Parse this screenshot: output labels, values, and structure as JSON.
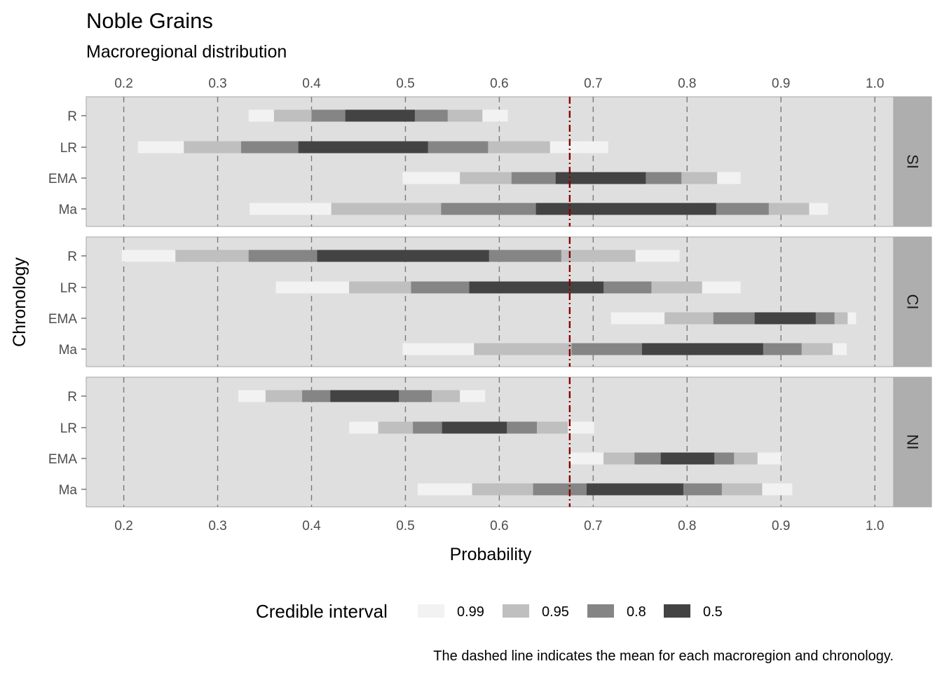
{
  "chart_data": {
    "type": "interval",
    "title": "Noble Grains",
    "subtitle": "Macroregional distribution",
    "xlabel": "Probability",
    "ylabel": "Chronology",
    "caption": "The dashed line indicates the mean for each macroregion and chronology.",
    "xlim": [
      0.16,
      1.02
    ],
    "x_ticks": [
      "0.2",
      "0.3",
      "0.4",
      "0.5",
      "0.6",
      "0.7",
      "0.8",
      "0.9",
      "1.0"
    ],
    "x_tick_values": [
      0.2,
      0.3,
      0.4,
      0.5,
      0.6,
      0.7,
      0.8,
      0.9,
      1.0
    ],
    "grid": true,
    "mean_line": 0.675,
    "categories": [
      "R",
      "LR",
      "EMA",
      "Ma"
    ],
    "legend": {
      "title": "Credible interval",
      "position": "bottom",
      "levels": [
        "0.99",
        "0.95",
        "0.8",
        "0.5"
      ],
      "colors": [
        "#f2f2f2",
        "#bfbfbf",
        "#858585",
        "#434343"
      ]
    },
    "colors": {
      "panel_bg": "#dfdfdf",
      "strip_bg": "#aeaeae",
      "mean_line": "#8b0000",
      "grid_line": "#7a7a7a"
    },
    "panels": [
      {
        "strip": "SI",
        "rows": [
          {
            "label": "R",
            "i99": [
              0.333,
              0.609
            ],
            "i95": [
              0.36,
              0.582
            ],
            "i80": [
              0.4,
              0.545
            ],
            "i50": [
              0.436,
              0.51
            ]
          },
          {
            "label": "LR",
            "i99": [
              0.215,
              0.716
            ],
            "i95": [
              0.264,
              0.654
            ],
            "i80": [
              0.325,
              0.588
            ],
            "i50": [
              0.386,
              0.524
            ]
          },
          {
            "label": "EMA",
            "i99": [
              0.497,
              0.857
            ],
            "i95": [
              0.558,
              0.832
            ],
            "i80": [
              0.613,
              0.794
            ],
            "i50": [
              0.66,
              0.756
            ]
          },
          {
            "label": "Ma",
            "i99": [
              0.334,
              0.95
            ],
            "i95": [
              0.421,
              0.93
            ],
            "i80": [
              0.538,
              0.887
            ],
            "i50": [
              0.639,
              0.831
            ]
          }
        ]
      },
      {
        "strip": "CI",
        "rows": [
          {
            "label": "R",
            "i99": [
              0.198,
              0.792
            ],
            "i95": [
              0.255,
              0.745
            ],
            "i80": [
              0.333,
              0.666
            ],
            "i50": [
              0.406,
              0.589
            ]
          },
          {
            "label": "LR",
            "i99": [
              0.362,
              0.857
            ],
            "i95": [
              0.44,
              0.816
            ],
            "i80": [
              0.506,
              0.762
            ],
            "i50": [
              0.568,
              0.711
            ]
          },
          {
            "label": "EMA",
            "i99": [
              0.719,
              0.98
            ],
            "i95": [
              0.776,
              0.971
            ],
            "i80": [
              0.828,
              0.957
            ],
            "i50": [
              0.872,
              0.937
            ]
          },
          {
            "label": "Ma",
            "i99": [
              0.497,
              0.97
            ],
            "i95": [
              0.573,
              0.955
            ],
            "i80": [
              0.677,
              0.922
            ],
            "i50": [
              0.752,
              0.881
            ]
          }
        ]
      },
      {
        "strip": "NI",
        "rows": [
          {
            "label": "R",
            "i99": [
              0.322,
              0.585
            ],
            "i95": [
              0.351,
              0.558
            ],
            "i80": [
              0.39,
              0.528
            ],
            "i50": [
              0.42,
              0.493
            ]
          },
          {
            "label": "LR",
            "i99": [
              0.44,
              0.701
            ],
            "i95": [
              0.471,
              0.673
            ],
            "i80": [
              0.508,
              0.64
            ],
            "i50": [
              0.539,
              0.608
            ]
          },
          {
            "label": "EMA",
            "i99": [
              0.675,
              0.9
            ],
            "i95": [
              0.711,
              0.875
            ],
            "i80": [
              0.744,
              0.85
            ],
            "i50": [
              0.772,
              0.829
            ]
          },
          {
            "label": "Ma",
            "i99": [
              0.513,
              0.912
            ],
            "i95": [
              0.571,
              0.88
            ],
            "i80": [
              0.636,
              0.837
            ],
            "i50": [
              0.693,
              0.796
            ]
          }
        ]
      }
    ]
  }
}
